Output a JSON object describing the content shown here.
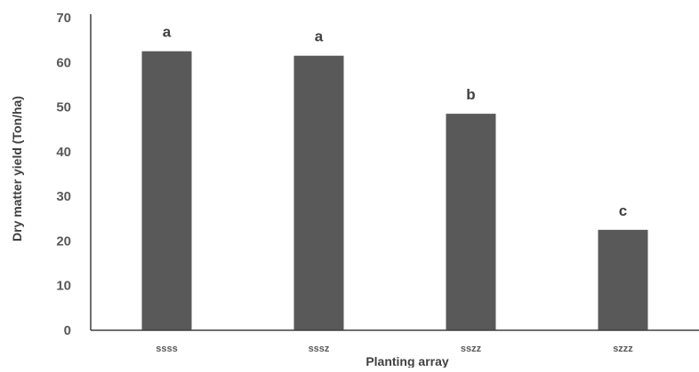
{
  "chart_data": {
    "type": "bar",
    "categories": [
      "ssss",
      "sssz",
      "sszz",
      "szzz"
    ],
    "values": [
      62.5,
      61.5,
      48.5,
      22.5
    ],
    "data_labels": [
      "a",
      "a",
      "b",
      "c"
    ],
    "title": "",
    "xlabel": "Planting array",
    "ylabel": "Dry matter yield (Ton/ha)",
    "ylim": [
      0,
      70
    ],
    "yticks": [
      0,
      10,
      20,
      30,
      40,
      50,
      60,
      70
    ],
    "grid": false,
    "legend": "none",
    "bar_color": "#595959",
    "axis_color": "#3f3f3f"
  }
}
